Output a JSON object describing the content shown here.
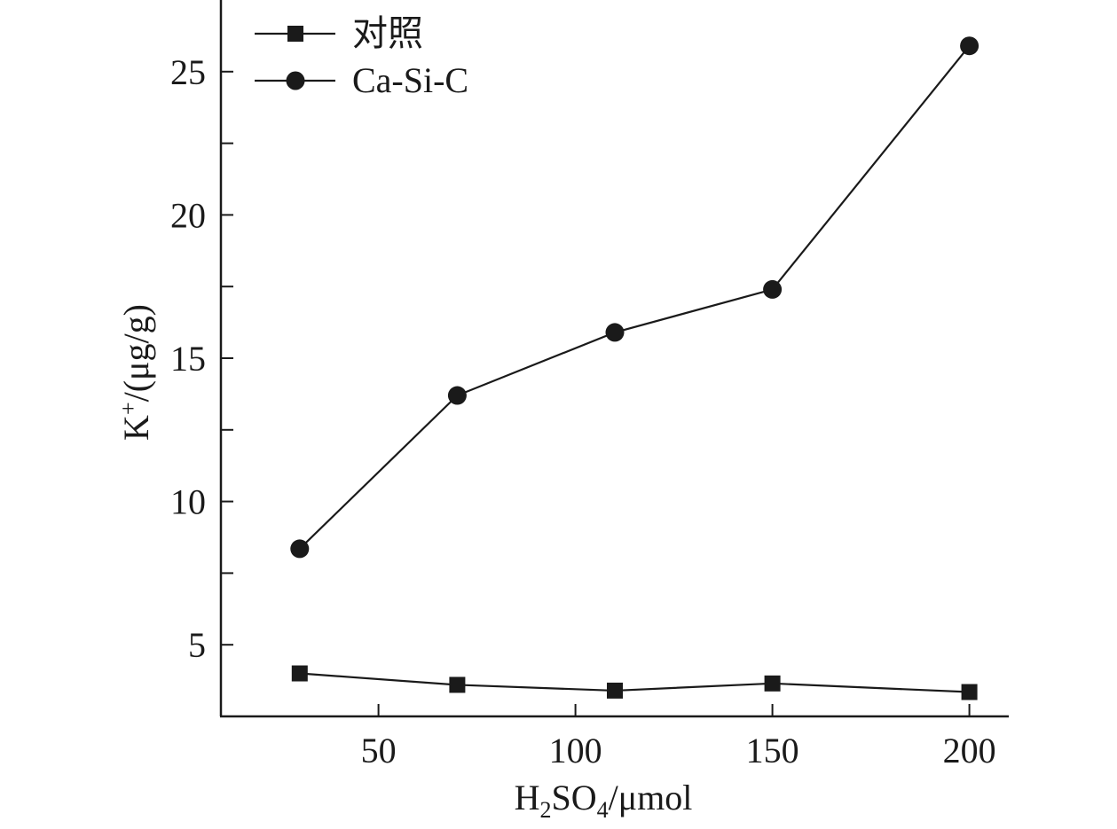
{
  "chart_data": {
    "type": "line",
    "x": [
      30,
      70,
      110,
      150,
      200
    ],
    "series": [
      {
        "name": "对照",
        "marker": "square",
        "values": [
          4.0,
          3.6,
          3.4,
          3.65,
          3.35
        ]
      },
      {
        "name": "Ca-Si-C",
        "marker": "circle",
        "values": [
          8.35,
          13.7,
          15.9,
          17.4,
          25.9
        ]
      }
    ],
    "xlim": [
      10,
      210
    ],
    "ylim": [
      2.5,
      27.5
    ],
    "xticks": [
      50,
      100,
      150,
      200
    ],
    "yticks": [
      5,
      10,
      15,
      20,
      25
    ],
    "xlabel": {
      "main": "H",
      "sub1": "2",
      "mid": "SO",
      "sub2": "4",
      "tail": "/μmol"
    },
    "ylabel": {
      "main": "K",
      "sup": "+",
      "tail": "/(μg/g)"
    },
    "legend_position": "top-left",
    "grid": false,
    "colors": {
      "line": "#1a1a1a",
      "marker": "#1a1a1a"
    }
  }
}
